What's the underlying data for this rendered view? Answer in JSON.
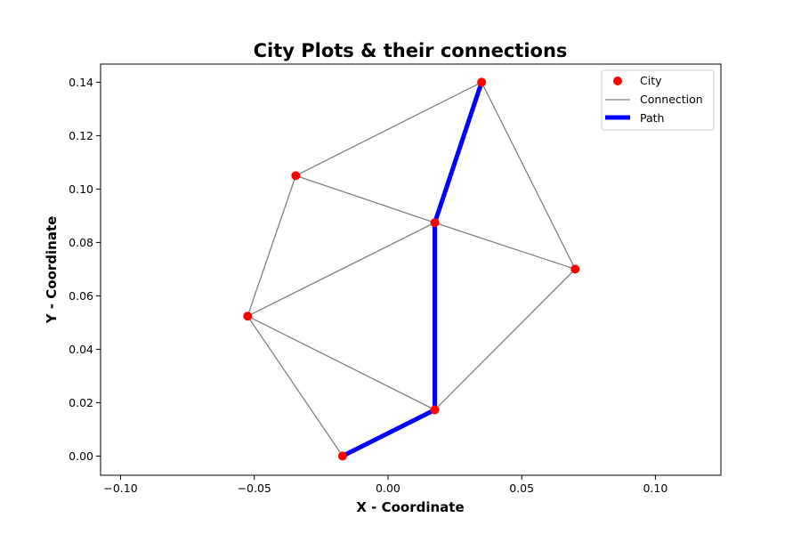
{
  "chart_data": {
    "type": "scatter",
    "title": "City Plots & their connections",
    "xlabel": "X - Coordinate",
    "ylabel": "Y - Coordinate",
    "xlim": [
      -0.1075,
      0.1245
    ],
    "ylim": [
      -0.0072,
      0.1468
    ],
    "xticks": [
      -0.1,
      -0.05,
      0.0,
      0.05,
      0.1
    ],
    "xtick_labels": [
      "−0.10",
      "−0.05",
      "0.00",
      "0.05",
      "0.10"
    ],
    "yticks": [
      0.0,
      0.02,
      0.04,
      0.06,
      0.08,
      0.1,
      0.12,
      0.14
    ],
    "ytick_labels": [
      "0.00",
      "0.02",
      "0.04",
      "0.06",
      "0.08",
      "0.10",
      "0.12",
      "0.14"
    ],
    "grid": false,
    "legend_position": "top-right",
    "cities": [
      {
        "x": -0.017,
        "y": 0.0
      },
      {
        "x": 0.0175,
        "y": 0.0173
      },
      {
        "x": -0.0525,
        "y": 0.0524
      },
      {
        "x": 0.07,
        "y": 0.07
      },
      {
        "x": 0.0175,
        "y": 0.0874
      },
      {
        "x": -0.0345,
        "y": 0.105
      },
      {
        "x": 0.035,
        "y": 0.14
      }
    ],
    "connections": [
      [
        0,
        1
      ],
      [
        0,
        2
      ],
      [
        1,
        2
      ],
      [
        1,
        3
      ],
      [
        1,
        4
      ],
      [
        2,
        4
      ],
      [
        2,
        5
      ],
      [
        3,
        4
      ],
      [
        3,
        6
      ],
      [
        4,
        5
      ],
      [
        4,
        6
      ],
      [
        5,
        6
      ]
    ],
    "path": [
      0,
      1,
      4,
      6
    ],
    "series": [
      {
        "name": "City",
        "color": "#ff0000",
        "marker": "circle"
      },
      {
        "name": "Connection",
        "color": "#808080",
        "marker": "line"
      },
      {
        "name": "Path",
        "color": "#0000ff",
        "marker": "thick-line"
      }
    ]
  }
}
